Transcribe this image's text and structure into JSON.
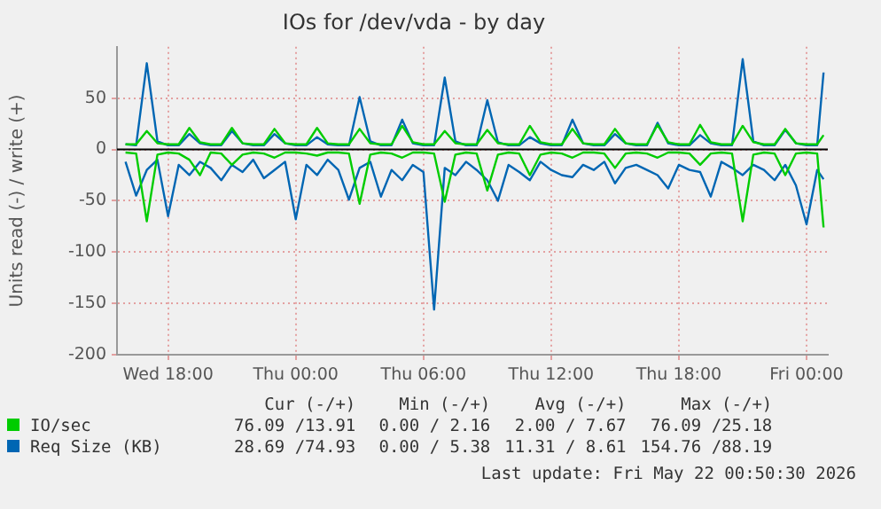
{
  "chart_data": {
    "type": "line",
    "title": "IOs for /dev/vda - by day",
    "ylabel": "Units read (-) / write (+)",
    "x": [
      "2026-05-20T16:00",
      "2026-05-20T16:30",
      "2026-05-20T17:00",
      "2026-05-20T17:30",
      "2026-05-20T18:00",
      "2026-05-20T18:30",
      "2026-05-20T19:00",
      "2026-05-20T19:30",
      "2026-05-20T20:00",
      "2026-05-20T20:30",
      "2026-05-20T21:00",
      "2026-05-20T21:30",
      "2026-05-20T22:00",
      "2026-05-20T22:30",
      "2026-05-20T23:00",
      "2026-05-20T23:30",
      "2026-05-21T00:00",
      "2026-05-21T00:30",
      "2026-05-21T01:00",
      "2026-05-21T01:30",
      "2026-05-21T02:00",
      "2026-05-21T02:30",
      "2026-05-21T03:00",
      "2026-05-21T03:30",
      "2026-05-21T04:00",
      "2026-05-21T04:30",
      "2026-05-21T05:00",
      "2026-05-21T05:30",
      "2026-05-21T06:00",
      "2026-05-21T06:30",
      "2026-05-21T07:00",
      "2026-05-21T07:30",
      "2026-05-21T08:00",
      "2026-05-21T08:30",
      "2026-05-21T09:00",
      "2026-05-21T09:30",
      "2026-05-21T10:00",
      "2026-05-21T10:30",
      "2026-05-21T11:00",
      "2026-05-21T11:30",
      "2026-05-21T12:00",
      "2026-05-21T12:30",
      "2026-05-21T13:00",
      "2026-05-21T13:30",
      "2026-05-21T14:00",
      "2026-05-21T14:30",
      "2026-05-21T15:00",
      "2026-05-21T15:30",
      "2026-05-21T16:00",
      "2026-05-21T16:30",
      "2026-05-21T17:00",
      "2026-05-21T17:30",
      "2026-05-21T18:00",
      "2026-05-21T18:30",
      "2026-05-21T19:00",
      "2026-05-21T19:30",
      "2026-05-21T20:00",
      "2026-05-21T20:30",
      "2026-05-21T21:00",
      "2026-05-21T21:30",
      "2026-05-21T22:00",
      "2026-05-21T22:30",
      "2026-05-21T23:00",
      "2026-05-21T23:30",
      "2026-05-22T00:00",
      "2026-05-22T00:30",
      "2026-05-22T00:48"
    ],
    "xlim": [
      "2026-05-20T15:36",
      "2026-05-22T01:00"
    ],
    "xticks": [
      {
        "value": "2026-05-20T18:00",
        "label": "Wed 18:00"
      },
      {
        "value": "2026-05-21T00:00",
        "label": "Thu 00:00"
      },
      {
        "value": "2026-05-21T06:00",
        "label": "Thu 06:00"
      },
      {
        "value": "2026-05-21T12:00",
        "label": "Thu 12:00"
      },
      {
        "value": "2026-05-21T18:00",
        "label": "Thu 18:00"
      },
      {
        "value": "2026-05-22T00:00",
        "label": "Fri 00:00"
      }
    ],
    "ylim": [
      -200,
      100
    ],
    "yticks": [
      -200,
      -150,
      -100,
      -50,
      0,
      50
    ],
    "grid": true,
    "legend": "bottom",
    "marker": "none",
    "line_style": "solid",
    "ref_lines": [
      {
        "axis": "y",
        "value": 0,
        "color": "#000000"
      }
    ],
    "series": [
      {
        "name": "IO/sec",
        "color": "#00cc00",
        "values": [
          5,
          5,
          18,
          6,
          5,
          5,
          21,
          7,
          5,
          5,
          21,
          6,
          5,
          5,
          20,
          6,
          5,
          5,
          21,
          6,
          5,
          5,
          20,
          6,
          5,
          5,
          23,
          7,
          5,
          5,
          18,
          6,
          5,
          5,
          19,
          6,
          5,
          5,
          23,
          7,
          5,
          5,
          20,
          6,
          5,
          5,
          20,
          6,
          5,
          5,
          24,
          7,
          5,
          5,
          24,
          7,
          5,
          5,
          23,
          7,
          5,
          5,
          20,
          6,
          5,
          5,
          14
        ]
      },
      {
        "color": "#00cc00",
        "values": [
          -3,
          -4,
          -70,
          -5,
          -3,
          -4,
          -10,
          -25,
          -3,
          -4,
          -15,
          -5,
          -3,
          -4,
          -8,
          -3,
          -3,
          -4,
          -6,
          -3,
          -3,
          -4,
          -53,
          -5,
          -3,
          -4,
          -8,
          -3,
          -3,
          -4,
          -51,
          -5,
          -3,
          -4,
          -40,
          -5,
          -3,
          -4,
          -25,
          -5,
          -3,
          -4,
          -8,
          -3,
          -3,
          -4,
          -18,
          -4,
          -3,
          -4,
          -8,
          -3,
          -3,
          -4,
          -15,
          -4,
          -3,
          -4,
          -70,
          -5,
          -3,
          -4,
          -25,
          -4,
          -3,
          -4,
          -76
        ]
      },
      {
        "name": "Req Size (KB)",
        "color": "#0066b3",
        "values": [
          5,
          4,
          84,
          8,
          4,
          4,
          15,
          6,
          4,
          4,
          18,
          6,
          4,
          4,
          15,
          6,
          4,
          4,
          12,
          5,
          4,
          4,
          51,
          8,
          4,
          4,
          29,
          6,
          4,
          4,
          70,
          8,
          4,
          4,
          48,
          7,
          4,
          4,
          12,
          6,
          4,
          4,
          29,
          6,
          4,
          4,
          15,
          6,
          4,
          4,
          26,
          6,
          4,
          4,
          14,
          6,
          4,
          4,
          88,
          8,
          4,
          4,
          19,
          6,
          4,
          4,
          75
        ]
      },
      {
        "color": "#0066b3",
        "values": [
          -12,
          -45,
          -20,
          -10,
          -65,
          -15,
          -25,
          -12,
          -18,
          -30,
          -15,
          -22,
          -10,
          -28,
          -20,
          -12,
          -68,
          -15,
          -25,
          -10,
          -20,
          -49,
          -18,
          -12,
          -46,
          -20,
          -30,
          -15,
          -22,
          -156,
          -18,
          -25,
          -12,
          -20,
          -30,
          -50,
          -15,
          -22,
          -30,
          -12,
          -20,
          -25,
          -27,
          -15,
          -20,
          -12,
          -33,
          -18,
          -15,
          -20,
          -25,
          -38,
          -15,
          -20,
          -22,
          -46,
          -12,
          -18,
          -25,
          -15,
          -20,
          -30,
          -15,
          -35,
          -73,
          -20,
          -29
        ]
      }
    ],
    "annotations": [
      "Cur (-/+)",
      "Min (-/+)",
      "Avg (-/+)",
      "Max (-/+)",
      "76.09 /13.91",
      "0.00 / 2.16",
      "2.00 / 7.67",
      "76.09 /25.18",
      "28.69 /74.93",
      "0.00 / 5.38",
      "11.31 / 8.61",
      "154.76 /88.19",
      "Last update: Fri May 22 00:50:30 2026"
    ]
  }
}
